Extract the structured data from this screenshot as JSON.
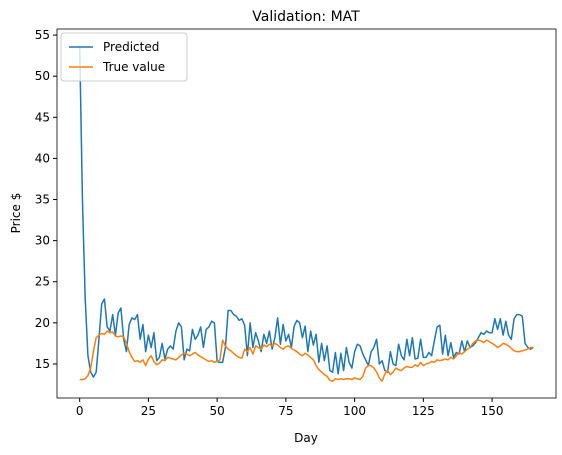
{
  "chart_data": {
    "type": "line",
    "title": "Validation: MAT",
    "xlabel": "Day",
    "ylabel": "Price $",
    "x": [
      0,
      1,
      2,
      3,
      4,
      5,
      6,
      7,
      8,
      9,
      10,
      11,
      12,
      13,
      14,
      15,
      16,
      17,
      18,
      19,
      20,
      21,
      22,
      23,
      24,
      25,
      26,
      27,
      28,
      29,
      30,
      31,
      32,
      33,
      34,
      35,
      36,
      37,
      38,
      39,
      40,
      41,
      42,
      43,
      44,
      45,
      46,
      47,
      48,
      49,
      50,
      51,
      52,
      53,
      54,
      55,
      56,
      57,
      58,
      59,
      60,
      61,
      62,
      63,
      64,
      65,
      66,
      67,
      68,
      69,
      70,
      71,
      72,
      73,
      74,
      75,
      76,
      77,
      78,
      79,
      80,
      81,
      82,
      83,
      84,
      85,
      86,
      87,
      88,
      89,
      90,
      91,
      92,
      93,
      94,
      95,
      96,
      97,
      98,
      99,
      100,
      101,
      102,
      103,
      104,
      105,
      106,
      107,
      108,
      109,
      110,
      111,
      112,
      113,
      114,
      115,
      116,
      117,
      118,
      119,
      120,
      121,
      122,
      123,
      124,
      125,
      126,
      127,
      128,
      129,
      130,
      131,
      132,
      133,
      134,
      135,
      136,
      137,
      138,
      139,
      140,
      141,
      142,
      143,
      144,
      145,
      146,
      147,
      148,
      149,
      150,
      151,
      152,
      153,
      154,
      155,
      156,
      157,
      158,
      159,
      160,
      161,
      162,
      163,
      164,
      165
    ],
    "series": [
      {
        "name": "Predicted",
        "color": "#1f77b4",
        "values": [
          53.7,
          35,
          23,
          16,
          14,
          13.4,
          14,
          18,
          22.3,
          22.9,
          19.5,
          19,
          21,
          18.5,
          21.2,
          21.8,
          18,
          16.5,
          19.8,
          20.6,
          20.4,
          21,
          18,
          19.8,
          16.5,
          18.5,
          17,
          18.8,
          15.4,
          15.8,
          17.5,
          15.6,
          16.8,
          17.2,
          16.8,
          19,
          20,
          19.5,
          15.5,
          16.8,
          16.6,
          19.2,
          18,
          18.5,
          19.5,
          17,
          19.2,
          19.5,
          20.2,
          20,
          15.3,
          15.2,
          15.2,
          17,
          21.5,
          21.5,
          21,
          20.8,
          20.3,
          20.5,
          19.7,
          16,
          20,
          17,
          18.8,
          17.8,
          16.5,
          18.6,
          17.5,
          19,
          16.8,
          18.2,
          20.6,
          17.4,
          19.8,
          17.8,
          18.6,
          17,
          19.6,
          20.3,
          20,
          18.2,
          19.6,
          16.5,
          19,
          17.3,
          18.6,
          15.2,
          17.5,
          15.4,
          17.2,
          14.2,
          14,
          16.4,
          13.8,
          16.3,
          14.2,
          17,
          15.2,
          14.5,
          16.5,
          17.4,
          17.2,
          16.2,
          15.5,
          14.8,
          16.5,
          17,
          18,
          15,
          15.4,
          14.2,
          14,
          16.5,
          15,
          14.8,
          17.4,
          16,
          15.5,
          18,
          16,
          18.2,
          15.6,
          15.7,
          18,
          15.8,
          15.8,
          16.4,
          16,
          17.8,
          19.5,
          19.7,
          16.2,
          18.5,
          16,
          17.6,
          15.8,
          16.4,
          16.2,
          17.8,
          16.5,
          17.8,
          17,
          17.2,
          17.6,
          18.2,
          18.8,
          18.6,
          19,
          18.8,
          18.8,
          20.5,
          19.2,
          20.5,
          18.5,
          20.2,
          18.5,
          18,
          20.5,
          21,
          21,
          20.8,
          17.5,
          17,
          16.8,
          17
        ]
      },
      {
        "name": "True value",
        "color": "#ff7f0e",
        "values": [
          13.1,
          13.1,
          13.2,
          13.6,
          14.5,
          16.5,
          18.2,
          18.5,
          18.7,
          18.6,
          19.0,
          18.8,
          18.9,
          18.4,
          18.3,
          18.4,
          18.3,
          17.5,
          16.5,
          15.8,
          15.3,
          15.4,
          15.2,
          15.5,
          14.8,
          15.6,
          16.0,
          15.3,
          14.9,
          15.1,
          15.5,
          15.4,
          15.8,
          15.7,
          15.6,
          15.5,
          15.8,
          16.1,
          16.3,
          16.2,
          16.0,
          16.2,
          16.4,
          16.1,
          15.9,
          15.7,
          15.5,
          15.3,
          15.4,
          15.2,
          15.3,
          15.5,
          17.9,
          17.2,
          16.8,
          16.6,
          16.3,
          16.0,
          15.8,
          15.7,
          16.8,
          16.5,
          17.0,
          16.2,
          17.2,
          17.0,
          16.8,
          17.3,
          17.1,
          17.4,
          17.2,
          17.5,
          17.3,
          17.0,
          16.8,
          17.1,
          17.2,
          16.9,
          16.7,
          16.5,
          16.2,
          16.0,
          16.3,
          16.1,
          15.8,
          15.5,
          14.8,
          14.3,
          14.0,
          13.7,
          13.5,
          13.0,
          12.9,
          13.2,
          13.1,
          13.2,
          13.1,
          13.2,
          13.2,
          13.1,
          13.3,
          13.2,
          13.1,
          13.5,
          14.5,
          14.8,
          14.8,
          14.5,
          14.0,
          13.3,
          12.9,
          13.8,
          14.2,
          13.7,
          14.0,
          14.5,
          14.3,
          14.2,
          14.5,
          14.7,
          14.6,
          14.6,
          14.9,
          14.7,
          15.2,
          14.8,
          15.0,
          15.1,
          15.3,
          15.2,
          15.5,
          15.4,
          15.5,
          15.6,
          15.5,
          15.8,
          15.6,
          16.0,
          16.4,
          16.2,
          16.5,
          16.8,
          17.0,
          17.5,
          17.8,
          17.9,
          17.8,
          17.6,
          17.9,
          17.7,
          17.5,
          17.3,
          17.0,
          17.2,
          17.5,
          17.4,
          17.2,
          16.9,
          16.6,
          16.5,
          16.5,
          16.6,
          16.7,
          16.8,
          17.0,
          17.0
        ]
      }
    ],
    "xlim": [
      -8.25,
      173.25
    ],
    "ylim": [
      10.86,
      55.74
    ],
    "xticks": [
      0,
      25,
      50,
      75,
      100,
      125,
      150
    ],
    "yticks": [
      15,
      20,
      25,
      30,
      35,
      40,
      45,
      50,
      55
    ],
    "legend": "upper left"
  }
}
